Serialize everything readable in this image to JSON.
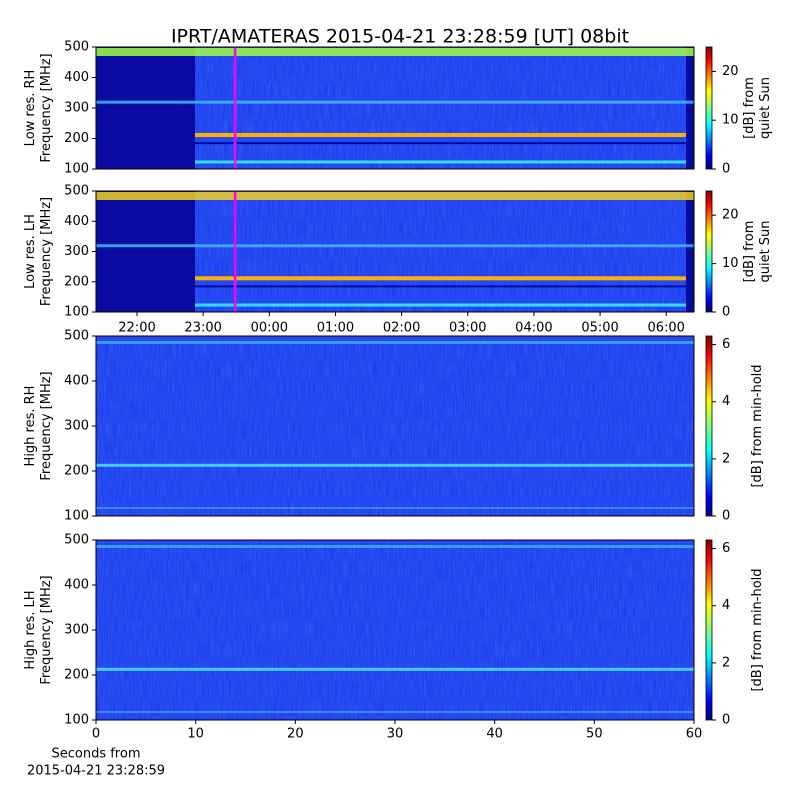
{
  "chart_data": [
    {
      "type": "heatmap",
      "title": "IPRT/AMATERAS 2015-04-21 23:28:59 [UT]   08bit",
      "ylabel": [
        "Low res. RH",
        "Frequency [MHz]"
      ],
      "ylim": [
        100,
        500
      ],
      "yticks": [
        100,
        200,
        300,
        400,
        500
      ],
      "xlim": [
        21.38,
        30.42
      ],
      "colormap": "jet",
      "clim": [
        0,
        25
      ],
      "cticks": [
        0,
        10,
        20
      ],
      "clabel": [
        "[dB] from",
        "quiet Sun"
      ],
      "marker": {
        "x": 23.483,
        "color": "#ff00ff"
      }
    },
    {
      "type": "heatmap",
      "ylabel": [
        "Low res. LH",
        "Frequency [MHz]"
      ],
      "ylim": [
        100,
        500
      ],
      "yticks": [
        100,
        200,
        300,
        400,
        500
      ],
      "xlim": [
        21.38,
        30.42
      ],
      "xticks": [
        {
          "value": 22,
          "label": "22:00"
        },
        {
          "value": 23,
          "label": "23:00"
        },
        {
          "value": 24,
          "label": "00:00"
        },
        {
          "value": 25,
          "label": "01:00"
        },
        {
          "value": 26,
          "label": "02:00"
        },
        {
          "value": 27,
          "label": "03:00"
        },
        {
          "value": 28,
          "label": "04:00"
        },
        {
          "value": 29,
          "label": "05:00"
        },
        {
          "value": 30,
          "label": "06:00"
        }
      ],
      "colormap": "jet",
      "clim": [
        0,
        25
      ],
      "cticks": [
        0,
        10,
        20
      ],
      "clabel": [
        "[dB] from",
        "quiet Sun"
      ],
      "marker": {
        "x": 23.483,
        "color": "#ff00ff"
      }
    },
    {
      "type": "heatmap",
      "ylabel": [
        "High res. RH",
        "Frequency [MHz]"
      ],
      "ylim": [
        100,
        500
      ],
      "yticks": [
        100,
        200,
        300,
        400,
        500
      ],
      "xlim": [
        0,
        60
      ],
      "colormap": "jet",
      "clim": [
        0,
        6.3
      ],
      "cticks": [
        0,
        2,
        4,
        6
      ],
      "clabel": [
        "[dB] from min-hold"
      ]
    },
    {
      "type": "heatmap",
      "ylabel": [
        "High res. LH",
        "Frequency [MHz]"
      ],
      "ylim": [
        100,
        500
      ],
      "yticks": [
        100,
        200,
        300,
        400,
        500
      ],
      "xlim": [
        0,
        60
      ],
      "xticks": [
        0,
        10,
        20,
        30,
        40,
        50,
        60
      ],
      "xlabel": [
        "Seconds from",
        "2015-04-21 23:28:59"
      ],
      "colormap": "jet",
      "clim": [
        0,
        6.3
      ],
      "cticks": [
        0,
        2,
        4,
        6
      ],
      "clabel": [
        "[dB] from min-hold"
      ]
    }
  ]
}
